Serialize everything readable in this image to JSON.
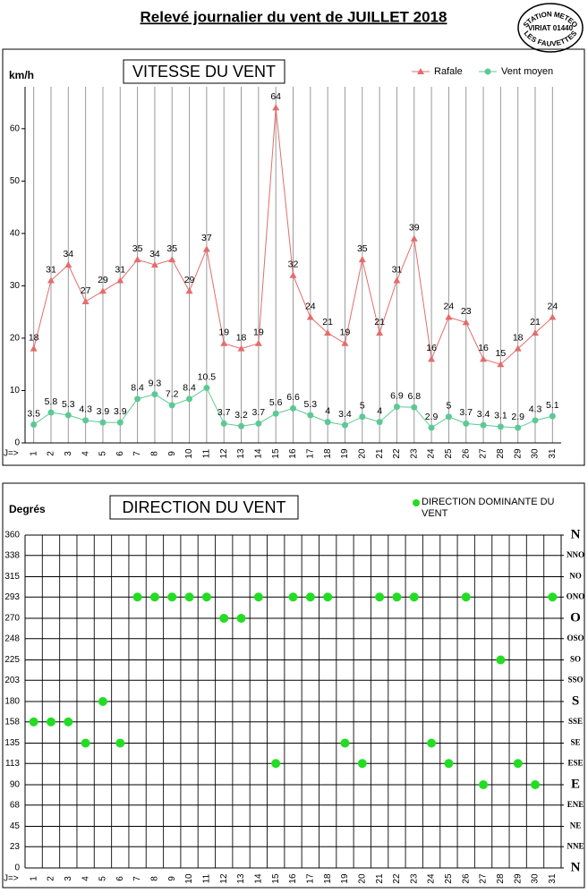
{
  "title": "Relevé journalier du vent de JUILLET 2018",
  "stamp": {
    "top": "STATION METEO",
    "middle": "VIRIAT 01440",
    "bottom": "LES FAUVETTES"
  },
  "chart_data": [
    {
      "type": "line",
      "title": "VITESSE DU VENT",
      "ylabel": "km/h",
      "xlabel": "J=>",
      "categories": [
        1,
        2,
        3,
        4,
        5,
        6,
        7,
        8,
        9,
        10,
        11,
        12,
        13,
        14,
        15,
        16,
        17,
        18,
        19,
        20,
        21,
        22,
        23,
        24,
        25,
        26,
        27,
        28,
        29,
        30,
        31
      ],
      "series": [
        {
          "name": "Rafale",
          "color": "#e46c6c",
          "marker": "triangle",
          "values": [
            18,
            31,
            34,
            27,
            29,
            31,
            35,
            34,
            35,
            29,
            37,
            19,
            18,
            19,
            64,
            32,
            24,
            21,
            19,
            35,
            21,
            31,
            39,
            16,
            24,
            23,
            16,
            15,
            18,
            21,
            24
          ]
        },
        {
          "name": "Vent moyen",
          "color": "#5cc994",
          "marker": "circle",
          "values": [
            3.5,
            5.8,
            5.3,
            4.3,
            3.9,
            3.9,
            8.4,
            9.3,
            7.2,
            8.4,
            10.5,
            3.7,
            3.2,
            3.7,
            5.6,
            6.6,
            5.3,
            4,
            3.4,
            5,
            4,
            6.9,
            6.8,
            2.9,
            5,
            3.7,
            3.4,
            3.1,
            2.9,
            4.3,
            5.1
          ]
        }
      ],
      "ylim": [
        0,
        68
      ],
      "yticks": [
        0,
        10,
        20,
        30,
        40,
        50,
        60
      ],
      "legend": "top-right",
      "data_labels": true
    },
    {
      "type": "scatter",
      "title": "DIRECTION DU VENT",
      "ylabel": "Degrés",
      "xlabel": "J=>",
      "categories": [
        1,
        2,
        3,
        4,
        5,
        6,
        7,
        8,
        9,
        10,
        11,
        12,
        13,
        14,
        15,
        16,
        17,
        18,
        19,
        20,
        21,
        22,
        23,
        24,
        25,
        26,
        27,
        28,
        29,
        30,
        31
      ],
      "series": [
        {
          "name": "DIRECTION DOMINANTE DU VENT",
          "color": "#22dd22",
          "values": [
            158,
            158,
            158,
            135,
            180,
            135,
            293,
            293,
            293,
            293,
            293,
            270,
            270,
            293,
            113,
            293,
            293,
            293,
            135,
            113,
            293,
            293,
            293,
            135,
            113,
            293,
            90,
            225,
            113,
            90,
            293
          ]
        }
      ],
      "ylim": [
        0,
        360
      ],
      "yticks": [
        0,
        23,
        45,
        68,
        90,
        113,
        135,
        158,
        180,
        203,
        225,
        248,
        270,
        293,
        315,
        338,
        360
      ],
      "y2lim": [
        0,
        360
      ],
      "y2ticks": [
        {
          "value": 0,
          "label": "N"
        },
        {
          "value": 23,
          "label": "NNE"
        },
        {
          "value": 45,
          "label": "NE"
        },
        {
          "value": 68,
          "label": "ENE"
        },
        {
          "value": 90,
          "label": "E"
        },
        {
          "value": 113,
          "label": "ESE"
        },
        {
          "value": 135,
          "label": "SE"
        },
        {
          "value": 158,
          "label": "SSE"
        },
        {
          "value": 180,
          "label": "S"
        },
        {
          "value": 203,
          "label": "SSO"
        },
        {
          "value": 225,
          "label": "SO"
        },
        {
          "value": 248,
          "label": "OSO"
        },
        {
          "value": 270,
          "label": "O"
        },
        {
          "value": 293,
          "label": "ONO"
        },
        {
          "value": 315,
          "label": "NO"
        },
        {
          "value": 338,
          "label": "NNO"
        },
        {
          "value": 360,
          "label": "N"
        }
      ],
      "grid": true,
      "legend": "top-right"
    }
  ]
}
